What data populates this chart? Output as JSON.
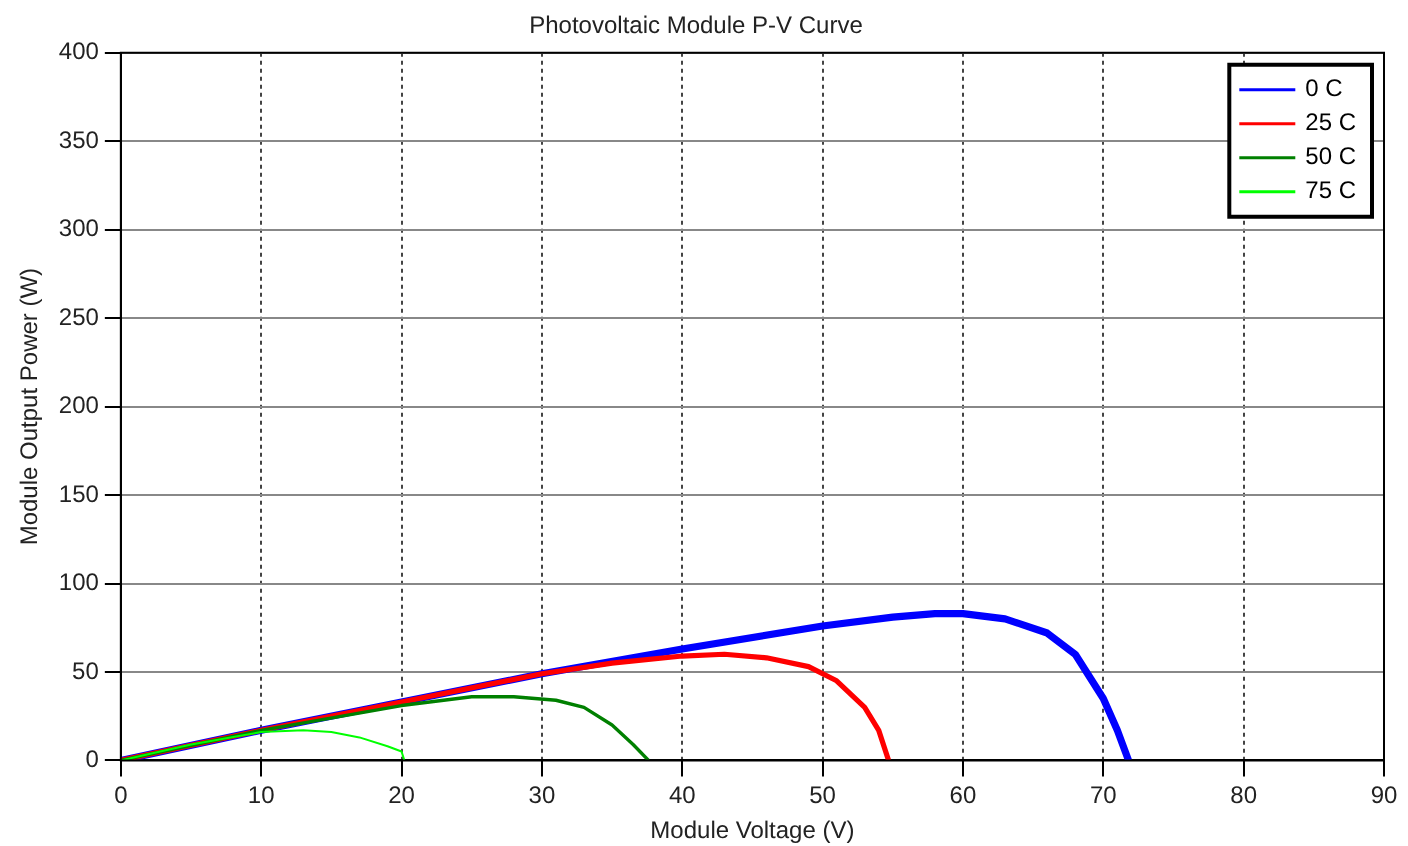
{
  "chart_data": {
    "type": "line",
    "title": "Photovoltaic Module P-V Curve",
    "xlabel": "Module Voltage (V)",
    "ylabel": "Module Output Power (W)",
    "xlim": [
      0,
      90
    ],
    "xticks": [
      0,
      10,
      20,
      30,
      40,
      50,
      60,
      70,
      80,
      90
    ],
    "ylim": [
      0,
      400
    ],
    "yticks": [
      0,
      50,
      100,
      150,
      200,
      250,
      300,
      350,
      400
    ],
    "grid": true,
    "legend": "top right",
    "marker": "none",
    "line_style": "solid",
    "series": [
      {
        "name": "0 C",
        "color": "#0000ff",
        "x": [
          0,
          10,
          20,
          30,
          40,
          50,
          55,
          58,
          60,
          63,
          66,
          68,
          70,
          71,
          71.8
        ],
        "values": [
          0,
          17,
          33,
          49,
          63,
          76,
          81,
          83,
          83,
          80,
          72,
          60,
          35,
          17,
          0
        ]
      },
      {
        "name": "25 C",
        "color": "#ff0000",
        "x": [
          0,
          10,
          20,
          30,
          35,
          40,
          43,
          46,
          49,
          51,
          53,
          54,
          54.7
        ],
        "values": [
          0,
          17,
          33,
          49,
          55,
          59,
          60,
          58,
          53,
          45,
          30,
          17,
          0
        ]
      },
      {
        "name": "50 C",
        "color": "#008000",
        "x": [
          0,
          10,
          20,
          25,
          28,
          31,
          33,
          35,
          36.5,
          37.6
        ],
        "values": [
          0,
          17,
          31,
          36,
          36,
          34,
          30,
          20,
          9,
          0
        ]
      },
      {
        "name": "75 C",
        "color": "#00ff00",
        "x": [
          0,
          5,
          10,
          13,
          15,
          17,
          19,
          20,
          20.2
        ],
        "values": [
          0,
          9,
          16,
          17,
          16,
          13,
          8,
          5,
          0
        ]
      }
    ]
  }
}
